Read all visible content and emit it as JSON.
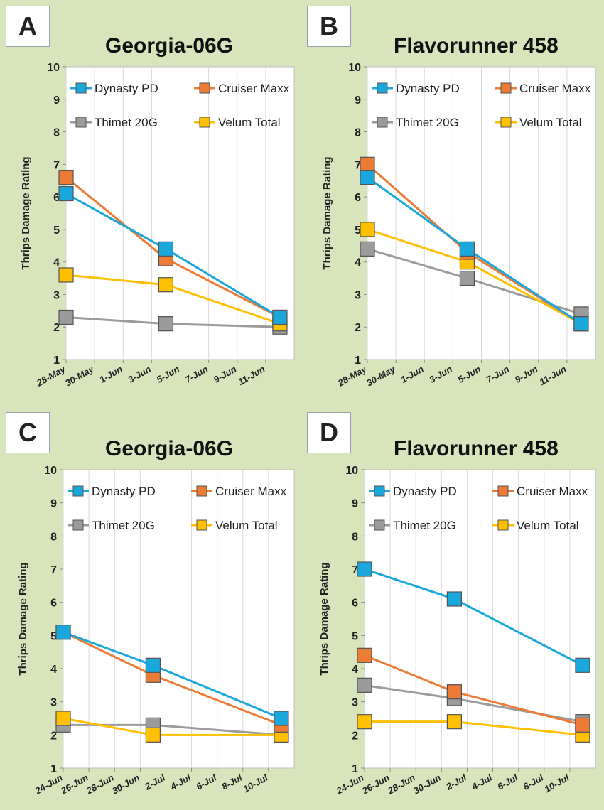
{
  "panels": [
    {
      "letter": "A",
      "title": "Georgia-06G"
    },
    {
      "letter": "B",
      "title": "Flavorunner 458"
    },
    {
      "letter": "C",
      "title": "Georgia-06G"
    },
    {
      "letter": "D",
      "title": "Flavorunner 458"
    }
  ],
  "colors": {
    "Dynasty PD": "#1aa7dc",
    "Cruiser Maxx": "#ec7b36",
    "Thimet 20G": "#9b9b9b",
    "Velum Total": "#ffc000"
  },
  "chart_data": [
    {
      "type": "line",
      "title": "Georgia-06G",
      "ylabel": "Thrips Damage Rating",
      "ylim": [
        1,
        10
      ],
      "yticks": [
        1,
        2,
        3,
        4,
        5,
        6,
        7,
        8,
        9,
        10
      ],
      "xlim": [
        "28-May",
        "13-Jun"
      ],
      "xticks": [
        "28-May",
        "30-May",
        "1-Jun",
        "3-Jun",
        "5-Jun",
        "7-Jun",
        "9-Jun",
        "11-Jun"
      ],
      "x": [
        "28-May",
        "4-Jun",
        "12-Jun"
      ],
      "series": [
        {
          "name": "Dynasty PD",
          "values": [
            6.1,
            4.4,
            2.3
          ]
        },
        {
          "name": "Cruiser Maxx",
          "values": [
            6.6,
            4.1,
            2.3
          ]
        },
        {
          "name": "Thimet 20G",
          "values": [
            2.3,
            2.1,
            2.0
          ]
        },
        {
          "name": "Velum Total",
          "values": [
            3.6,
            3.3,
            2.1
          ]
        }
      ],
      "legend": "top"
    },
    {
      "type": "line",
      "title": "Flavorunner 458",
      "ylabel": "Thrips Damage Rating",
      "ylim": [
        1,
        10
      ],
      "yticks": [
        1,
        2,
        3,
        4,
        5,
        6,
        7,
        8,
        9,
        10
      ],
      "xlim": [
        "28-May",
        "13-Jun"
      ],
      "xticks": [
        "28-May",
        "30-May",
        "1-Jun",
        "3-Jun",
        "5-Jun",
        "7-Jun",
        "9-Jun",
        "11-Jun"
      ],
      "x": [
        "28-May",
        "4-Jun",
        "12-Jun"
      ],
      "series": [
        {
          "name": "Dynasty PD",
          "values": [
            6.6,
            4.4,
            2.1
          ]
        },
        {
          "name": "Cruiser Maxx",
          "values": [
            7.0,
            4.3,
            2.1
          ]
        },
        {
          "name": "Thimet 20G",
          "values": [
            4.4,
            3.5,
            2.4
          ]
        },
        {
          "name": "Velum Total",
          "values": [
            5.0,
            4.0,
            2.1
          ]
        }
      ],
      "legend": "top"
    },
    {
      "type": "line",
      "title": "Georgia-06G",
      "ylabel": "Thrips Damage Rating",
      "ylim": [
        1,
        10
      ],
      "yticks": [
        1,
        2,
        3,
        4,
        5,
        6,
        7,
        8,
        9,
        10
      ],
      "xlim": [
        "24-Jun",
        "12-Jul"
      ],
      "xticks": [
        "24-Jun",
        "26-Jun",
        "28-Jun",
        "30-Jun",
        "2-Jul",
        "4-Jul",
        "6-Jul",
        "8-Jul",
        "10-Jul"
      ],
      "x": [
        "24-Jun",
        "1-Jul",
        "11-Jul"
      ],
      "series": [
        {
          "name": "Dynasty PD",
          "values": [
            5.1,
            4.1,
            2.5
          ]
        },
        {
          "name": "Cruiser Maxx",
          "values": [
            5.1,
            3.8,
            2.3
          ]
        },
        {
          "name": "Thimet 20G",
          "values": [
            2.3,
            2.3,
            2.0
          ]
        },
        {
          "name": "Velum Total",
          "values": [
            2.5,
            2.0,
            2.0
          ]
        }
      ],
      "legend": "top"
    },
    {
      "type": "line",
      "title": "Flavorunner 458",
      "ylabel": "Thrips Damage Rating",
      "ylim": [
        1,
        10
      ],
      "yticks": [
        1,
        2,
        3,
        4,
        5,
        6,
        7,
        8,
        9,
        10
      ],
      "xlim": [
        "24-Jun",
        "12-Jul"
      ],
      "xticks": [
        "24-Jun",
        "26-Jun",
        "28-Jun",
        "30-Jun",
        "2-Jul",
        "4-Jul",
        "6-Jul",
        "8-Jul",
        "10-Jul"
      ],
      "x": [
        "24-Jun",
        "1-Jul",
        "11-Jul"
      ],
      "series": [
        {
          "name": "Dynasty PD",
          "values": [
            7.0,
            6.1,
            4.1
          ]
        },
        {
          "name": "Cruiser Maxx",
          "values": [
            4.4,
            3.3,
            2.3
          ]
        },
        {
          "name": "Thimet 20G",
          "values": [
            3.5,
            3.1,
            2.4
          ]
        },
        {
          "name": "Velum Total",
          "values": [
            2.4,
            2.4,
            2.0
          ]
        }
      ],
      "legend": "top"
    }
  ]
}
